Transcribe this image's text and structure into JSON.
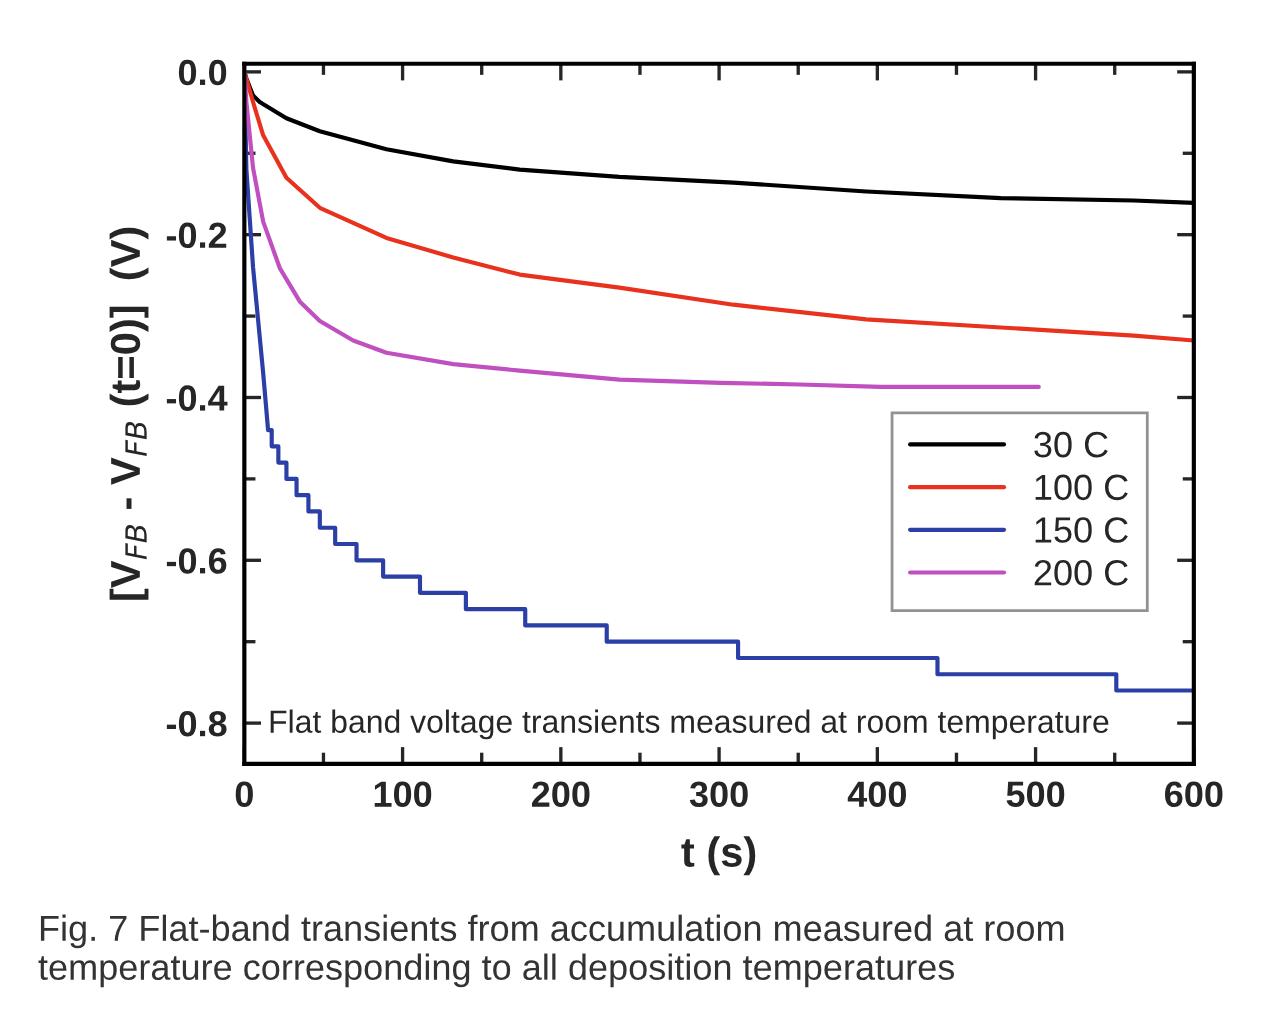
{
  "chart_data": {
    "type": "line",
    "xlabel": "t (s)",
    "ylabel": "[V$_{FB}$ - V$_{FB}$ (t=0)]  (V)",
    "xlim": [
      0,
      600
    ],
    "ylim": [
      -0.85,
      0.01
    ],
    "xticks": [
      0,
      {
        "value": 50,
        "label": null
      },
      100,
      {
        "value": 150,
        "label": null
      },
      200,
      {
        "value": 250,
        "label": null
      },
      300,
      {
        "value": 350,
        "label": null
      },
      400,
      {
        "value": 450,
        "label": null
      },
      500,
      {
        "value": 550,
        "label": null
      },
      600
    ],
    "yticks": [
      {
        "value": 0,
        "label": "0.0"
      },
      {
        "value": -0.1,
        "label": null
      },
      -0.2,
      {
        "value": -0.3,
        "label": null
      },
      -0.4,
      {
        "value": -0.5,
        "label": null
      },
      -0.6,
      {
        "value": -0.7,
        "label": null
      },
      -0.8
    ],
    "grid": false,
    "legend": "right",
    "marker": "none",
    "line_style": "solid",
    "series": [
      {
        "name": "30 C",
        "color": "#000000",
        "x": [
          0,
          1.3,
          5.5,
          9.7,
          26.6,
          47.7,
          89.8,
          132,
          174,
          237,
          309,
          393,
          478,
          562,
          600
        ],
        "values": [
          0,
          -0.008,
          -0.029,
          -0.037,
          -0.057,
          -0.073,
          -0.095,
          -0.11,
          -0.12,
          -0.129,
          -0.136,
          -0.147,
          -0.155,
          -0.158,
          -0.161
        ]
      },
      {
        "name": "100 C",
        "color": "#e8321e",
        "x": [
          0,
          5.5,
          11.9,
          26.6,
          47.7,
          89.8,
          132,
          174,
          237,
          309,
          393,
          478,
          562,
          600
        ],
        "values": [
          0,
          -0.037,
          -0.078,
          -0.13,
          -0.167,
          -0.204,
          -0.228,
          -0.249,
          -0.265,
          -0.286,
          -0.304,
          -0.314,
          -0.324,
          -0.33
        ]
      },
      {
        "name": "150 C",
        "color": "#2b3fa6",
        "x": [
          0,
          1.3,
          5.5,
          11.9,
          15,
          17.3,
          17.3,
          21.5,
          21.5,
          26.6,
          26.6,
          33,
          33,
          40.5,
          40.5,
          47.7,
          47.7,
          57.4,
          57.4,
          70.9,
          70.9,
          87.7,
          87.7,
          111,
          111,
          140,
          140,
          177.5,
          177.5,
          229,
          229,
          312,
          312,
          438,
          438,
          551,
          551,
          600
        ],
        "values": [
          0,
          -0.12,
          -0.24,
          -0.37,
          -0.44,
          -0.44,
          -0.46,
          -0.46,
          -0.48,
          -0.48,
          -0.5,
          -0.5,
          -0.52,
          -0.52,
          -0.54,
          -0.54,
          -0.56,
          -0.56,
          -0.58,
          -0.58,
          -0.6,
          -0.6,
          -0.62,
          -0.62,
          -0.64,
          -0.64,
          -0.66,
          -0.66,
          -0.68,
          -0.68,
          -0.7,
          -0.7,
          -0.72,
          -0.72,
          -0.74,
          -0.74,
          -0.76,
          -0.76
        ]
      },
      {
        "name": "200 C",
        "color": "#c04fbf",
        "x": [
          0,
          1.3,
          5.5,
          11.9,
          22.4,
          35,
          47.7,
          68.8,
          89.8,
          132,
          174,
          237,
          301,
          351,
          402,
          502
        ],
        "values": [
          0,
          -0.037,
          -0.118,
          -0.184,
          -0.241,
          -0.282,
          -0.306,
          -0.33,
          -0.345,
          -0.359,
          -0.367,
          -0.378,
          -0.382,
          -0.384,
          -0.387,
          -0.387
        ]
      }
    ],
    "annotations": [
      "Flat band voltage transients measured at room temperature",
      "Fig. 7 Flat-band transients from accumulation measured at room temperature corresponding to all deposition temperatures"
    ]
  }
}
